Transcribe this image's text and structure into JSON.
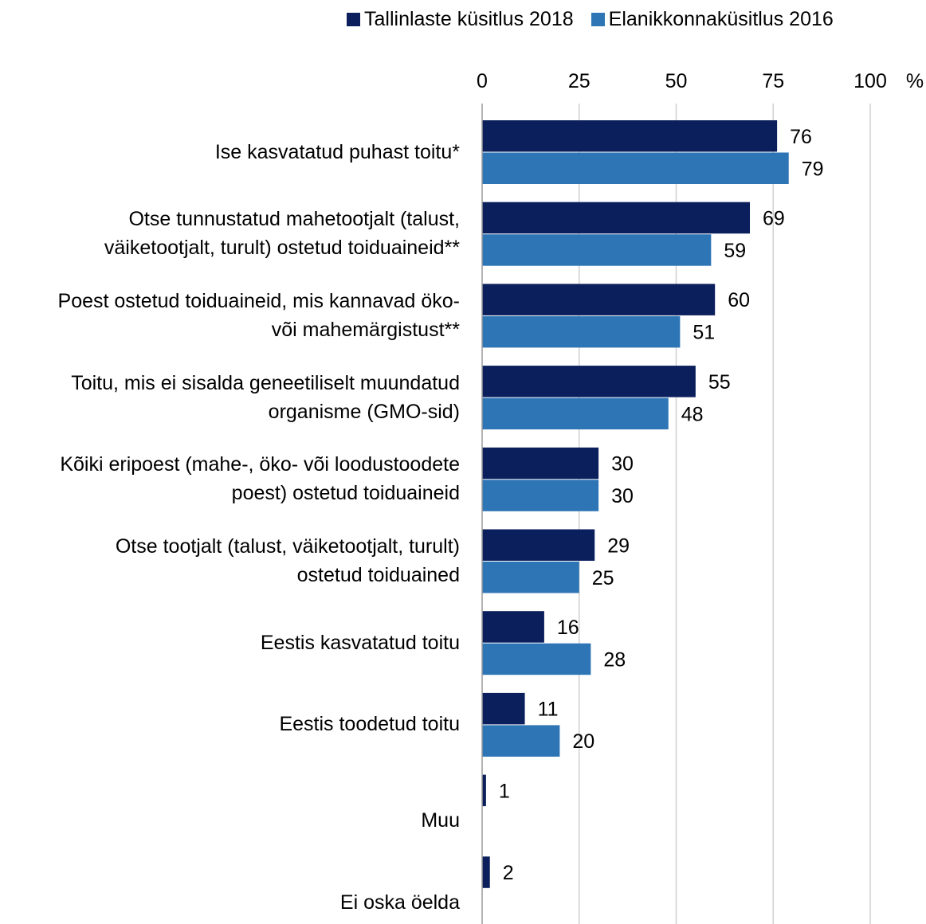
{
  "chart_data": {
    "type": "bar",
    "orientation": "horizontal",
    "unit": "%",
    "xlim": [
      0,
      100
    ],
    "ticks": [
      0,
      25,
      50,
      75,
      100
    ],
    "grid": true,
    "legend_position": "top-right",
    "categories": [
      "Ise kasvatatud puhast toitu*",
      "Otse tunnustatud mahetootjalt (talust,\nväiketootjalt, turult) ostetud toiduaineid**",
      "Poest ostetud toiduaineid, mis kannavad öko-\nvõi mahemärgistust**",
      "Toitu, mis ei sisalda geneetiliselt muundatud\norganisme (GMO-sid)",
      "Kõiki eripoest (mahe-, öko- või loodustoodete\npoest) ostetud toiduaineid",
      "Otse tootjalt (talust, väiketootjalt, turult)\nostetud toiduained",
      "Eestis kasvatatud toitu",
      "Eestis toodetud toitu",
      "Muu",
      "Ei oska öelda"
    ],
    "series": [
      {
        "name": "Tallinlaste küsitlus 2018",
        "color": "#0b1f5c",
        "values": [
          76,
          69,
          60,
          55,
          30,
          29,
          16,
          11,
          1,
          2
        ]
      },
      {
        "name": "Elanikkonnaküsitlus 2016",
        "color": "#2e75b6",
        "values": [
          79,
          59,
          51,
          48,
          30,
          25,
          28,
          20,
          null,
          null
        ]
      }
    ]
  }
}
